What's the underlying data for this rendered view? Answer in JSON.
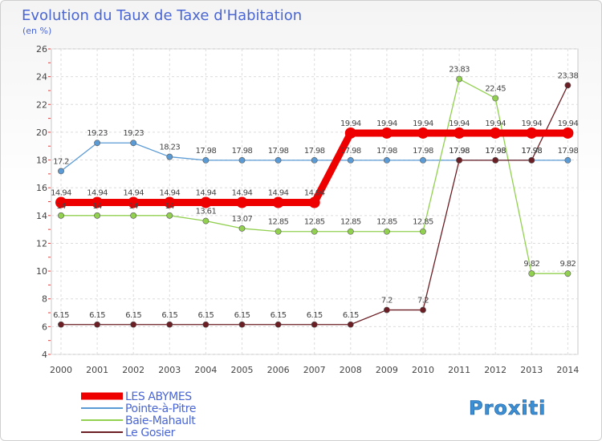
{
  "chart_data": {
    "type": "line",
    "title": "Evolution du Taux de Taxe d'Habitation",
    "subtitle": "(en %)",
    "x": [
      "2000",
      "2001",
      "2002",
      "2003",
      "2004",
      "2005",
      "2006",
      "2007",
      "2008",
      "2009",
      "2010",
      "2011",
      "2012",
      "2013",
      "2014"
    ],
    "ylim": [
      4,
      26
    ],
    "yticks": [
      4,
      6,
      8,
      10,
      12,
      14,
      16,
      18,
      20,
      22,
      24,
      26
    ],
    "grid": true,
    "legend_position": "bottom-left",
    "series": [
      {
        "name": "LES ABYMES",
        "color": "#ee0000",
        "values": [
          14.94,
          14.94,
          14.94,
          14.94,
          14.94,
          14.94,
          14.94,
          14.94,
          19.94,
          19.94,
          19.94,
          19.94,
          19.94,
          19.94,
          19.94
        ]
      },
      {
        "name": "Pointe-à-Pitre",
        "color": "#5b9bd5",
        "values": [
          17.2,
          19.23,
          19.23,
          18.23,
          17.98,
          17.98,
          17.98,
          17.98,
          17.98,
          17.98,
          17.98,
          17.98,
          17.98,
          17.98,
          17.98
        ]
      },
      {
        "name": "Baie-Mahault",
        "color": "#92d050",
        "values": [
          14,
          14,
          14,
          14,
          13.61,
          13.07,
          12.85,
          12.85,
          12.85,
          12.85,
          12.85,
          23.83,
          22.45,
          9.82,
          9.82
        ]
      },
      {
        "name": "Le Gosier",
        "color": "#6b1e24",
        "values": [
          6.15,
          6.15,
          6.15,
          6.15,
          6.15,
          6.15,
          6.15,
          6.15,
          6.15,
          7.2,
          7.2,
          17.98,
          17.98,
          17.98,
          23.38
        ]
      }
    ],
    "data_labels": {
      "LES ABYMES": [
        "14.94",
        "14.94",
        "14.94",
        "14.94",
        "14.94",
        "14.94",
        "14.94",
        "14.94",
        "19.94",
        "19.94",
        "19.94",
        "19.94",
        "19.94",
        "19.94",
        "19.94"
      ],
      "Pointe-à-Pitre": [
        "17.2",
        "19.23",
        "19.23",
        "18.23",
        "17.98",
        "17.98",
        "17.98",
        "17.98",
        "17.98",
        "17.98",
        "17.98",
        "17.98",
        "17.98",
        "17.98",
        "17.98"
      ],
      "Baie-Mahault": [
        "14",
        "14",
        "14",
        "14",
        "13.61",
        "13.07",
        "12.85",
        "12.85",
        "12.85",
        "12.85",
        "12.85",
        "23.83",
        "22.45",
        "9.82",
        "9.82"
      ],
      "Le Gosier": [
        "6.15",
        "6.15",
        "6.15",
        "6.15",
        "6.15",
        "6.15",
        "6.15",
        "6.15",
        "6.15",
        "7.2",
        "7.2",
        "17.98",
        "17.98",
        "17.98",
        "23.38"
      ]
    }
  },
  "logo": {
    "text": "Proxiti"
  }
}
